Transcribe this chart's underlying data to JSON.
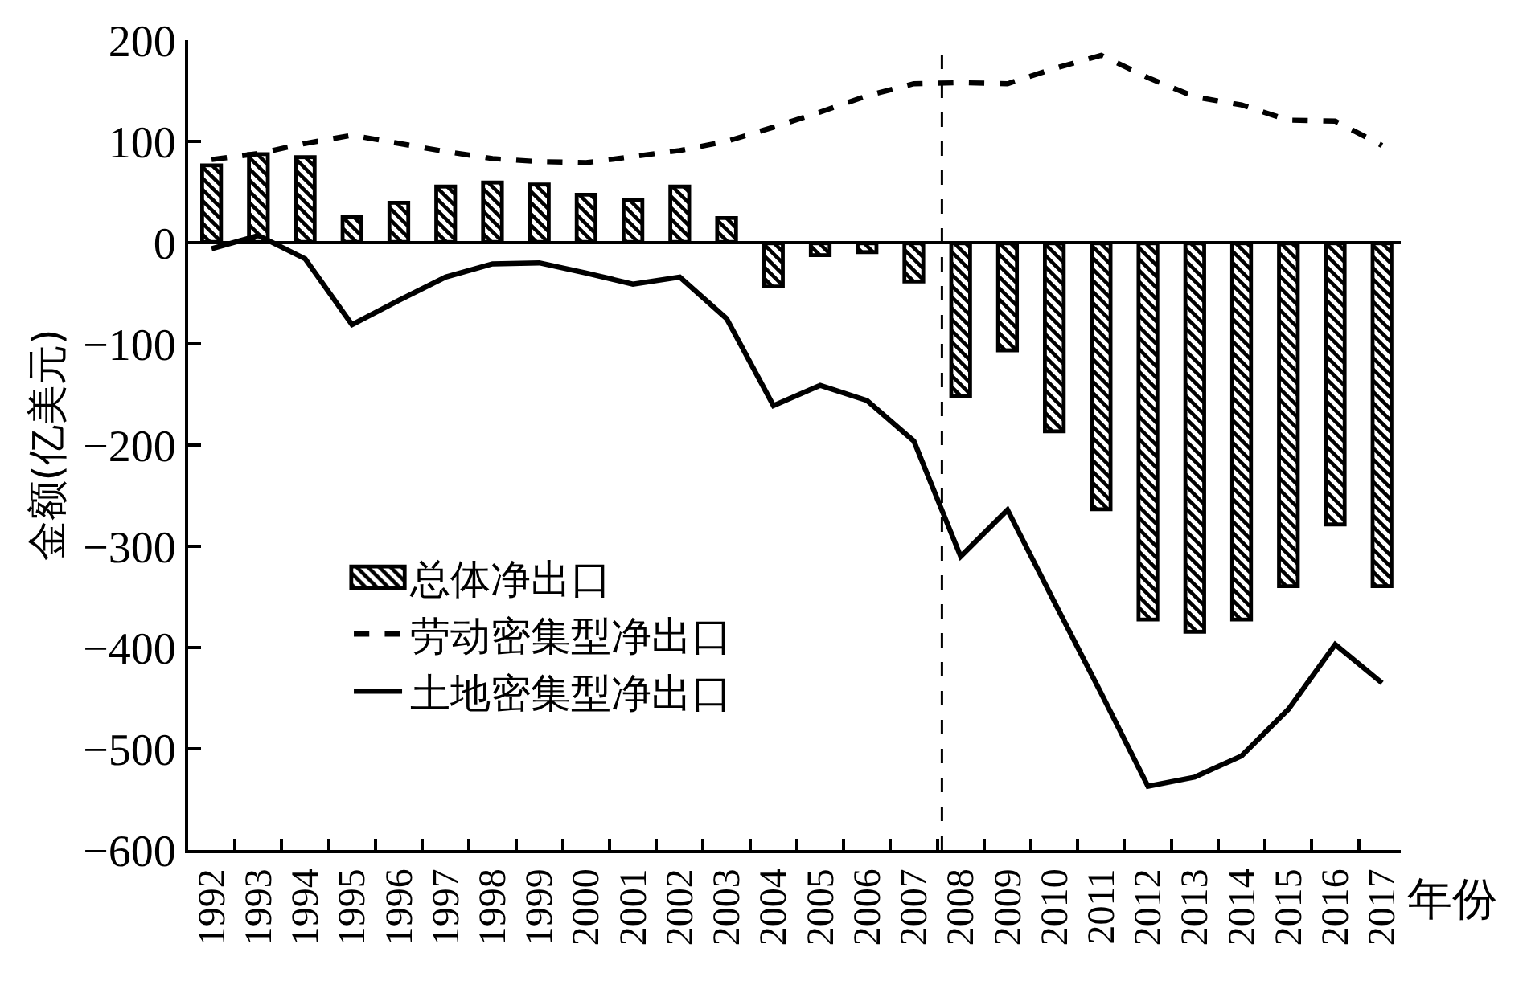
{
  "chart_data": {
    "type": "bar",
    "xlabel": "年份",
    "ylabel": "金额(亿美元)",
    "x": [
      1992,
      1993,
      1994,
      1995,
      1996,
      1997,
      1998,
      1999,
      2000,
      2001,
      2002,
      2003,
      2004,
      2005,
      2006,
      2007,
      2008,
      2009,
      2010,
      2011,
      2012,
      2013,
      2014,
      2015,
      2016,
      2017
    ],
    "xlim": [
      1991.5,
      2017.4
    ],
    "xticks": [
      1992,
      1993,
      1994,
      1995,
      1996,
      1997,
      1998,
      1999,
      2000,
      2001,
      2002,
      2003,
      2004,
      2005,
      2006,
      2007,
      2008,
      2009,
      2010,
      2011,
      2012,
      2013,
      2014,
      2015,
      2016,
      2017
    ],
    "ylim": [
      -600,
      200
    ],
    "yticks": [
      -600,
      -500,
      -400,
      -300,
      -200,
      -100,
      0,
      100,
      200
    ],
    "legend": "bottom left",
    "ref_lines": [
      {
        "axis": "x",
        "value": 2007.6,
        "color": "#000000",
        "line_style": "dashed"
      }
    ],
    "series": [
      {
        "name": "总体净出口",
        "color": "#000000",
        "values": [
          77,
          88,
          85,
          26,
          40,
          56,
          60,
          58,
          48,
          43,
          56,
          25,
          -44,
          -13,
          -10,
          -39,
          -152,
          -107,
          -187,
          -264,
          -373,
          -385,
          -373,
          -340,
          -279,
          -340
        ]
      },
      {
        "name": "劳动密集型净出口",
        "type": "line",
        "line_style": "dashed",
        "color": "#000000",
        "values": [
          82,
          88,
          98,
          106,
          98,
          90,
          83,
          80,
          79,
          85,
          91,
          100,
          114,
          129,
          145,
          157,
          158,
          157,
          172,
          185,
          163,
          144,
          136,
          121,
          120,
          96
        ]
      },
      {
        "name": "土地密集型净出口",
        "type": "line",
        "line_style": "solid",
        "color": "#000000",
        "values": [
          -6,
          7,
          -16,
          -81,
          -57,
          -34,
          -21,
          -20,
          -30,
          -41,
          -34,
          -75,
          -161,
          -141,
          -156,
          -196,
          -310,
          -264,
          -355,
          -445,
          -537,
          -528,
          -507,
          -461,
          -397,
          -435
        ]
      }
    ]
  }
}
